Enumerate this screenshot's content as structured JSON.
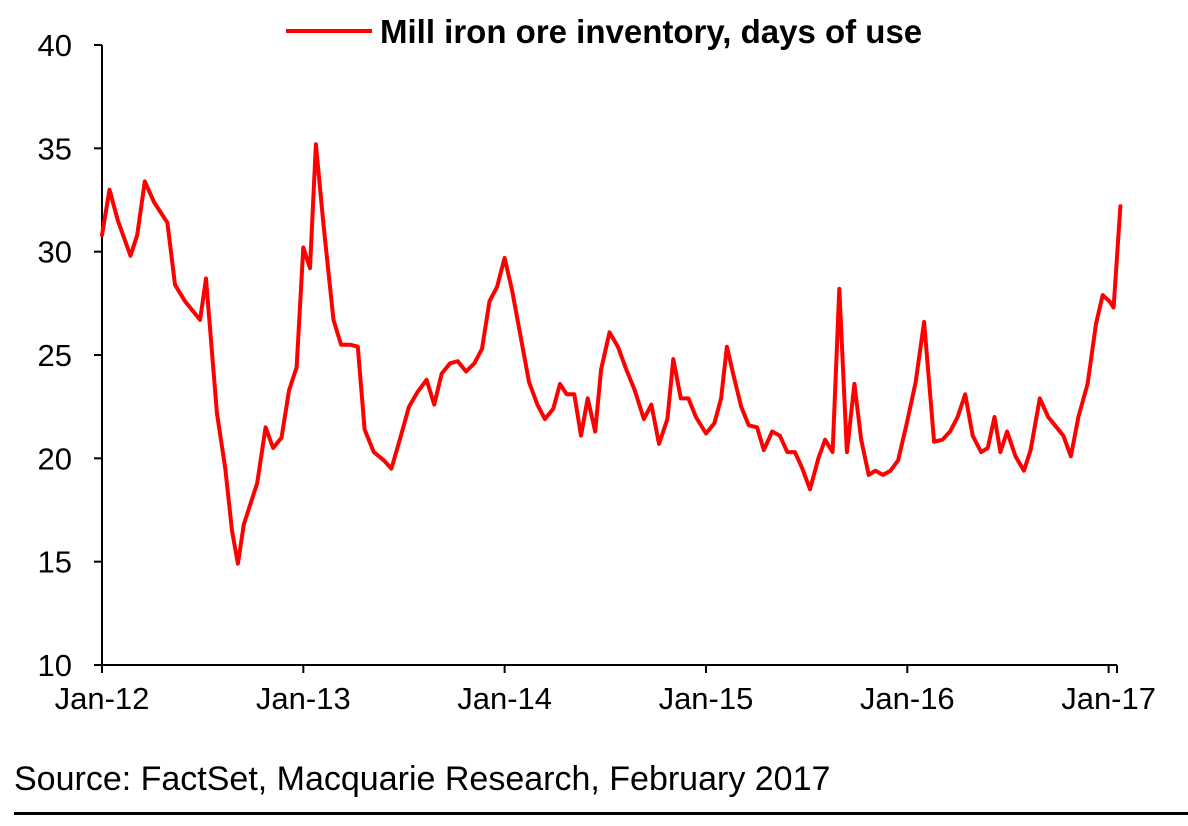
{
  "source_text": "Source: FactSet, Macquarie Research, February 2017",
  "chart_data": {
    "type": "line",
    "title": "",
    "xlabel": "",
    "ylabel": "",
    "ylim": [
      10,
      40
    ],
    "yticks": [
      10,
      15,
      20,
      25,
      30,
      35,
      40
    ],
    "xticks": [
      {
        "label": "Jan-12",
        "t": 0
      },
      {
        "label": "Jan-13",
        "t": 12
      },
      {
        "label": "Jan-14",
        "t": 24
      },
      {
        "label": "Jan-15",
        "t": 36
      },
      {
        "label": "Jan-16",
        "t": 48
      },
      {
        "label": "Jan-17",
        "t": 60
      }
    ],
    "x_unit": "months since Jan-12",
    "xlim": [
      0,
      60.5
    ],
    "legend": {
      "position": "top",
      "entries": [
        "Mill iron ore inventory, days of use"
      ]
    },
    "series": [
      {
        "name": "Mill iron ore inventory, days of use",
        "color": "#ff0000",
        "points": [
          [
            0.0,
            30.8
          ],
          [
            0.45,
            33.0
          ],
          [
            0.95,
            31.5
          ],
          [
            1.7,
            29.8
          ],
          [
            2.1,
            30.8
          ],
          [
            2.55,
            33.4
          ],
          [
            3.1,
            32.4
          ],
          [
            3.9,
            31.4
          ],
          [
            4.35,
            28.4
          ],
          [
            4.95,
            27.6
          ],
          [
            5.85,
            26.7
          ],
          [
            6.2,
            28.7
          ],
          [
            6.85,
            22.2
          ],
          [
            7.35,
            19.5
          ],
          [
            7.75,
            16.5
          ],
          [
            8.1,
            14.9
          ],
          [
            8.45,
            16.8
          ],
          [
            9.25,
            18.8
          ],
          [
            9.75,
            21.5
          ],
          [
            10.2,
            20.5
          ],
          [
            10.7,
            21.0
          ],
          [
            11.15,
            23.3
          ],
          [
            11.6,
            24.4
          ],
          [
            12.0,
            30.2
          ],
          [
            12.4,
            29.2
          ],
          [
            12.75,
            35.2
          ],
          [
            13.2,
            31.3
          ],
          [
            13.8,
            26.7
          ],
          [
            14.25,
            25.5
          ],
          [
            14.8,
            25.5
          ],
          [
            15.25,
            25.4
          ],
          [
            15.65,
            21.4
          ],
          [
            16.2,
            20.3
          ],
          [
            16.8,
            19.9
          ],
          [
            17.25,
            19.5
          ],
          [
            17.75,
            20.9
          ],
          [
            18.3,
            22.5
          ],
          [
            18.8,
            23.2
          ],
          [
            19.35,
            23.8
          ],
          [
            19.8,
            22.6
          ],
          [
            20.25,
            24.1
          ],
          [
            20.75,
            24.6
          ],
          [
            21.2,
            24.7
          ],
          [
            21.7,
            24.2
          ],
          [
            22.2,
            24.6
          ],
          [
            22.65,
            25.3
          ],
          [
            23.1,
            27.6
          ],
          [
            23.55,
            28.3
          ],
          [
            24.0,
            29.7
          ],
          [
            24.45,
            28.1
          ],
          [
            24.95,
            25.9
          ],
          [
            25.45,
            23.7
          ],
          [
            25.95,
            22.6
          ],
          [
            26.4,
            21.9
          ],
          [
            26.9,
            22.4
          ],
          [
            27.3,
            23.6
          ],
          [
            27.7,
            23.1
          ],
          [
            28.15,
            23.1
          ],
          [
            28.55,
            21.1
          ],
          [
            28.95,
            22.9
          ],
          [
            29.4,
            21.3
          ],
          [
            29.75,
            24.3
          ],
          [
            30.25,
            26.1
          ],
          [
            30.75,
            25.4
          ],
          [
            31.25,
            24.3
          ],
          [
            31.75,
            23.3
          ],
          [
            32.3,
            21.9
          ],
          [
            32.75,
            22.6
          ],
          [
            33.2,
            20.7
          ],
          [
            33.7,
            21.9
          ],
          [
            34.05,
            24.8
          ],
          [
            34.5,
            22.9
          ],
          [
            34.95,
            22.9
          ],
          [
            35.4,
            22.0
          ],
          [
            36.0,
            21.2
          ],
          [
            36.5,
            21.7
          ],
          [
            36.9,
            22.9
          ],
          [
            37.25,
            25.4
          ],
          [
            37.65,
            24.0
          ],
          [
            38.1,
            22.5
          ],
          [
            38.55,
            21.6
          ],
          [
            39.05,
            21.5
          ],
          [
            39.45,
            20.4
          ],
          [
            39.95,
            21.3
          ],
          [
            40.4,
            21.1
          ],
          [
            40.85,
            20.3
          ],
          [
            41.3,
            20.3
          ],
          [
            41.75,
            19.5
          ],
          [
            42.2,
            18.5
          ],
          [
            42.7,
            20.0
          ],
          [
            43.1,
            20.9
          ],
          [
            43.55,
            20.3
          ],
          [
            43.95,
            28.2
          ],
          [
            44.4,
            20.3
          ],
          [
            44.85,
            23.6
          ],
          [
            45.25,
            20.9
          ],
          [
            45.7,
            19.2
          ],
          [
            46.1,
            19.4
          ],
          [
            46.55,
            19.2
          ],
          [
            47.0,
            19.4
          ],
          [
            47.45,
            19.9
          ],
          [
            48.0,
            21.8
          ],
          [
            48.5,
            23.7
          ],
          [
            49.0,
            26.6
          ],
          [
            49.6,
            20.8
          ],
          [
            50.1,
            20.9
          ],
          [
            50.55,
            21.3
          ],
          [
            51.0,
            22.0
          ],
          [
            51.45,
            23.1
          ],
          [
            51.9,
            21.1
          ],
          [
            52.4,
            20.3
          ],
          [
            52.8,
            20.5
          ],
          [
            53.2,
            22.0
          ],
          [
            53.55,
            20.3
          ],
          [
            53.95,
            21.3
          ],
          [
            54.45,
            20.1
          ],
          [
            54.95,
            19.4
          ],
          [
            55.35,
            20.4
          ],
          [
            55.9,
            22.9
          ],
          [
            56.4,
            22.0
          ],
          [
            56.9,
            21.5
          ],
          [
            57.3,
            21.1
          ],
          [
            57.75,
            20.1
          ],
          [
            58.2,
            22.0
          ],
          [
            58.75,
            23.6
          ],
          [
            59.25,
            26.5
          ],
          [
            59.65,
            27.9
          ],
          [
            60.05,
            27.6
          ],
          [
            60.3,
            27.3
          ],
          [
            60.7,
            32.2
          ]
        ]
      }
    ]
  }
}
